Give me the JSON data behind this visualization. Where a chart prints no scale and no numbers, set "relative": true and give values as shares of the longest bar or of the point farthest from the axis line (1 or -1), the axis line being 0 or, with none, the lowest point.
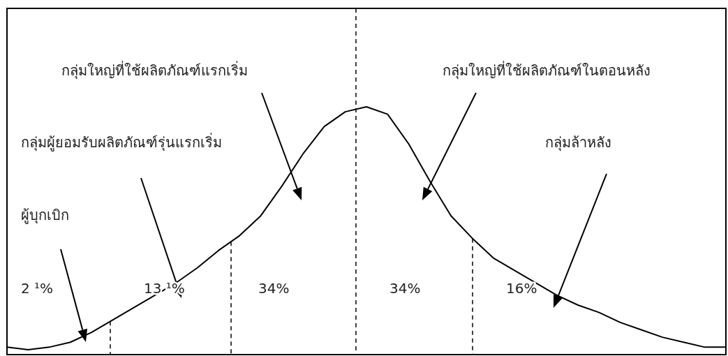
{
  "chart_data": {
    "type": "line",
    "relative": true,
    "line_style": "solid",
    "categories": [
      null,
      null,
      null,
      null,
      null,
      null,
      null,
      null,
      null,
      null,
      null,
      null,
      null,
      null,
      null,
      null,
      null,
      null,
      null,
      null,
      null,
      null,
      null,
      null,
      null,
      null,
      null,
      null,
      null,
      null,
      null,
      null,
      null,
      null,
      null
    ],
    "series": [
      {
        "color": "#000000",
        "values": [
          0.03,
          0.02,
          0.03,
          0.05,
          0.09,
          0.14,
          0.19,
          0.24,
          0.29,
          0.35,
          0.42,
          0.48,
          0.56,
          0.68,
          0.81,
          0.92,
          0.98,
          1,
          0.97,
          0.85,
          0.7,
          0.56,
          0.47,
          0.39,
          0.34,
          0.29,
          0.24,
          0.2,
          0.17,
          0.13,
          0.1,
          0.07,
          0.05,
          0.03,
          0.03
        ]
      }
    ],
    "annotations": [
      "กลุ่มใหญ่ที่ใช้ผลิตภัณฑ์แรกเริ่ม",
      "กลุ่มใหญ่ที่ใช้ผลิตภัณฑ์ในตอนหลัง",
      "กลุ่มผู้ยอมรับผลิตภัณฑ์รุ่นแรกเริ่ม",
      "กลุ่มล้าหลัง",
      "ผู้บุกเบิก",
      "2 ¹%",
      "13 ¹%",
      "34%",
      "34%",
      "16%"
    ]
  }
}
